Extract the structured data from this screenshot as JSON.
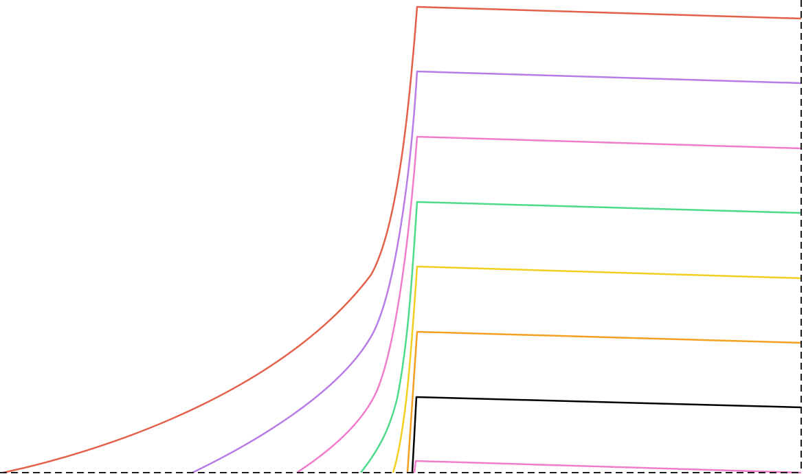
{
  "diagram": {
    "background": "#ffffff",
    "boundary_color": "#1a1a1a",
    "curves": [
      {
        "color": "#e4604a"
      },
      {
        "color": "#b77ce6"
      },
      {
        "color": "#f07ccc"
      },
      {
        "color": "#4ddb8a"
      },
      {
        "color": "#f0cf1e"
      },
      {
        "color": "#f5a020"
      },
      {
        "color": "#000000"
      },
      {
        "color": "#f07ccc"
      }
    ]
  }
}
